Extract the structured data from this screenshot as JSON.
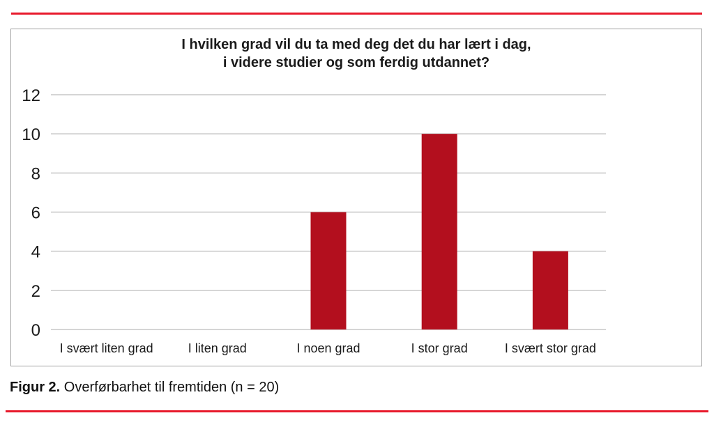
{
  "page": {
    "accent_rule_color": "#E8192B"
  },
  "chart_data": {
    "type": "bar",
    "title": "I hvilken grad vil du ta med deg det du har lært i dag,\ni videre studier og som ferdig utdannet?",
    "categories": [
      "I svært liten grad",
      "I liten grad",
      "I noen grad",
      "I stor grad",
      "I svært stor grad"
    ],
    "values": [
      0,
      0,
      6,
      10,
      4
    ],
    "xlabel": "",
    "ylabel": "",
    "ylim": [
      0,
      12
    ],
    "yticks": [
      0,
      2,
      4,
      6,
      8,
      10,
      12
    ],
    "grid": "horizontal",
    "legend": "none",
    "bar_color": "#B30F1E",
    "gridline_color": "#C7C7C7",
    "axis_text_color": "#1A1A1A"
  },
  "caption": {
    "label": "Figur 2.",
    "text": " Overførbarhet til fremtiden (n = 20)"
  }
}
